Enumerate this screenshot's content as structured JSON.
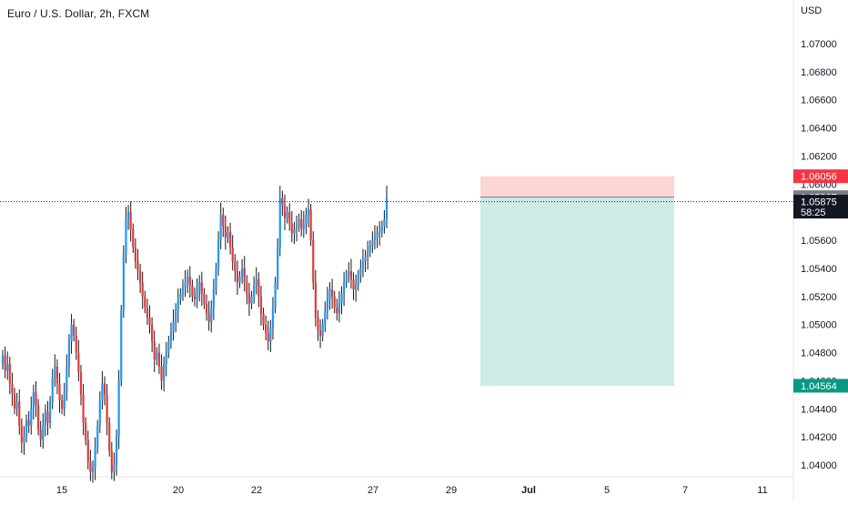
{
  "header": {
    "title": "Euro / U.S. Dollar, 2h, FXCM",
    "currency": "USD"
  },
  "colors": {
    "up": "#2196f3",
    "down": "#e53935",
    "wick": "#131722",
    "stop_zone": "#fcd5d5",
    "target_zone": "#cdece8",
    "stop_label_bg": "#f23645",
    "entry_label_bg": "#787b86",
    "current_label_bg": "#131722",
    "target_label_bg": "#089981"
  },
  "chart_data": {
    "type": "candlestick",
    "y_ticks": [
      "1.07000",
      "1.06800",
      "1.06600",
      "1.06400",
      "1.06200",
      "1.06000",
      "1.05800",
      "1.05600",
      "1.05400",
      "1.05200",
      "1.05000",
      "1.04800",
      "1.04600",
      "1.04400",
      "1.04200",
      "1.04000"
    ],
    "x_ticks": [
      "15",
      "20",
      "22",
      "27",
      "29",
      "Jul",
      "5",
      "7",
      "11"
    ],
    "x_tick_dates": [
      "2023-06-15",
      "2023-06-20",
      "2023-06-22",
      "2023-06-27",
      "2023-06-29",
      "2023-07-01",
      "2023-07-05",
      "2023-07-07",
      "2023-07-11"
    ],
    "ylim": [
      1.0391,
      1.0727
    ],
    "price_labels": {
      "stop": "1.06056",
      "entry": "1.05907",
      "current": "1.05875",
      "countdown": "58:25",
      "target": "1.04564"
    },
    "position": {
      "direction": "short",
      "entry": 1.05907,
      "stop": 1.06056,
      "target": 1.04564,
      "start": "2023-06-27",
      "end": "2023-07-01"
    },
    "current_price": 1.05875,
    "candles_close": [
      1.0478,
      1.0467,
      1.0472,
      1.0458,
      1.0451,
      1.044,
      1.0445,
      1.0428,
      1.0416,
      1.042,
      1.0432,
      1.0428,
      1.044,
      1.0452,
      1.0443,
      1.0425,
      1.0418,
      1.0428,
      1.0438,
      1.043,
      1.0445,
      1.0462,
      1.047,
      1.0458,
      1.0446,
      1.044,
      1.0452,
      1.047,
      1.0488,
      1.05,
      1.0492,
      1.048,
      1.0466,
      1.045,
      1.043,
      1.0418,
      1.0402,
      1.0395,
      1.0398,
      1.0412,
      1.0428,
      1.0446,
      1.0458,
      1.045,
      1.043,
      1.041,
      1.0395,
      1.04,
      1.042,
      1.046,
      1.051,
      1.055,
      1.0575,
      1.058,
      1.0568,
      1.0555,
      1.0545,
      1.0538,
      1.053,
      1.052,
      1.0512,
      1.0505,
      1.05,
      1.0488,
      1.0475,
      1.048,
      1.047,
      1.046,
      1.0472,
      1.048,
      1.0488,
      1.0495,
      1.0502,
      1.051,
      1.0518,
      1.0522,
      1.0526,
      1.053,
      1.0534,
      1.0528,
      1.052,
      1.0518,
      1.0524,
      1.053,
      1.0522,
      1.0515,
      1.0508,
      1.0502,
      1.0512,
      1.0525,
      1.054,
      1.056,
      1.0578,
      1.057,
      1.0562,
      1.0566,
      1.0555,
      1.0545,
      1.0538,
      1.053,
      1.0534,
      1.054,
      1.053,
      1.0522,
      1.0515,
      1.052,
      1.0528,
      1.0532,
      1.052,
      1.0508,
      1.05,
      1.0494,
      1.0488,
      1.0498,
      1.0512,
      1.053,
      1.0555,
      1.059,
      1.0585,
      1.0576,
      1.058,
      1.0572,
      1.0565,
      1.0568,
      1.057,
      1.0575,
      1.0568,
      1.0572,
      1.0578,
      1.0582,
      1.056,
      1.053,
      1.0505,
      1.0496,
      1.0492,
      1.05,
      1.051,
      1.0518,
      1.0525,
      1.052,
      1.0512,
      1.0508,
      1.0515,
      1.0522,
      1.053,
      1.0535,
      1.0538,
      1.0532,
      1.0525,
      1.0528,
      1.0535,
      1.054,
      1.0545,
      1.0548,
      1.0552,
      1.0556,
      1.056,
      1.0562,
      1.0565,
      1.0566,
      1.057,
      1.0575,
      1.059
    ]
  }
}
